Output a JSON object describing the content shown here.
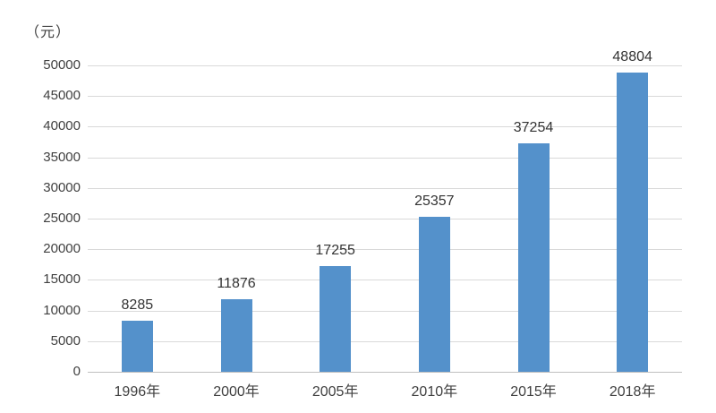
{
  "chart_data": {
    "type": "bar",
    "title": "",
    "xlabel": "",
    "ylabel": "（元）",
    "categories": [
      "1996年",
      "2000年",
      "2005年",
      "2010年",
      "2015年",
      "2018年"
    ],
    "values": [
      8285,
      11876,
      17255,
      25357,
      37254,
      48804
    ],
    "data_labels": [
      "8285",
      "11876",
      "17255",
      "25357",
      "37254",
      "48804"
    ],
    "ylim": [
      0,
      50000
    ],
    "yticks": [
      0,
      5000,
      10000,
      15000,
      20000,
      25000,
      30000,
      35000,
      40000,
      45000,
      50000
    ],
    "grid": true,
    "legend": false,
    "colors": {
      "bar": "#5491cb",
      "gridline": "#d9d9d9",
      "axis_line": "#bfbfbf",
      "tick_text": "#404040",
      "value_text": "#333333",
      "background": "#ffffff"
    }
  }
}
